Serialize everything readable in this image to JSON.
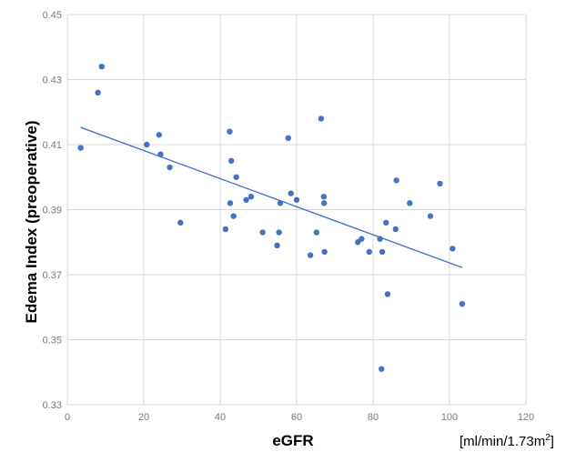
{
  "chart_data": {
    "type": "scatter",
    "title": "",
    "xlabel": "eGFR",
    "ylabel": "Edema Index (preoperative)",
    "unit_label": {
      "prefix": "[ml/min/1.73m",
      "sup": "2",
      "suffix": "]"
    },
    "xlim": [
      0,
      120
    ],
    "ylim": [
      0.33,
      0.45
    ],
    "x_ticks": [
      0,
      20,
      40,
      60,
      80,
      100,
      120
    ],
    "y_ticks": [
      0.33,
      0.35,
      0.37,
      0.39,
      0.41,
      0.43,
      0.45
    ],
    "grid": true,
    "marker_color": "#4472C4",
    "trendline": {
      "type": "linear",
      "color": "#4472C4",
      "start": [
        3.5,
        0.4153
      ],
      "end": [
        103.3,
        0.3722
      ]
    },
    "series": [
      {
        "points": [
          [
            3.5,
            0.409
          ],
          [
            8.0,
            0.426
          ],
          [
            9.0,
            0.434
          ],
          [
            20.8,
            0.41
          ],
          [
            24.0,
            0.413
          ],
          [
            24.4,
            0.407
          ],
          [
            26.8,
            0.403
          ],
          [
            29.6,
            0.386
          ],
          [
            41.4,
            0.384
          ],
          [
            42.5,
            0.414
          ],
          [
            42.6,
            0.392
          ],
          [
            42.9,
            0.405
          ],
          [
            43.5,
            0.388
          ],
          [
            44.2,
            0.4
          ],
          [
            46.8,
            0.393
          ],
          [
            48.1,
            0.394
          ],
          [
            51.1,
            0.383
          ],
          [
            54.9,
            0.379
          ],
          [
            55.4,
            0.383
          ],
          [
            55.7,
            0.392
          ],
          [
            57.8,
            0.412
          ],
          [
            58.5,
            0.395
          ],
          [
            60.0,
            0.393
          ],
          [
            63.6,
            0.376
          ],
          [
            65.2,
            0.383
          ],
          [
            66.4,
            0.418
          ],
          [
            67.1,
            0.394
          ],
          [
            67.2,
            0.392
          ],
          [
            67.3,
            0.377
          ],
          [
            76.0,
            0.38
          ],
          [
            77.0,
            0.381
          ],
          [
            79.0,
            0.377
          ],
          [
            81.8,
            0.381
          ],
          [
            82.2,
            0.341
          ],
          [
            82.4,
            0.377
          ],
          [
            83.4,
            0.386
          ],
          [
            83.8,
            0.364
          ],
          [
            85.9,
            0.384
          ],
          [
            86.1,
            0.399
          ],
          [
            89.6,
            0.392
          ],
          [
            95.0,
            0.388
          ],
          [
            97.5,
            0.398
          ],
          [
            100.8,
            0.378
          ],
          [
            103.3,
            0.361
          ]
        ]
      }
    ]
  }
}
